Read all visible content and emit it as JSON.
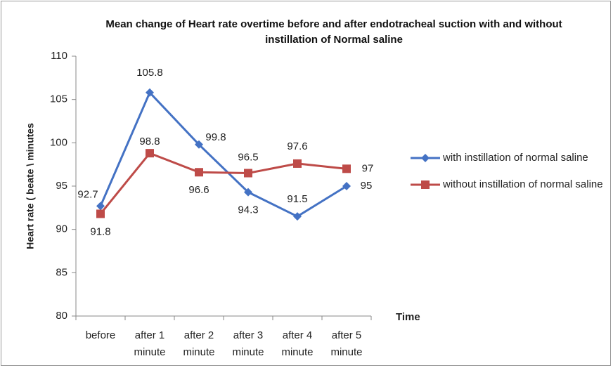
{
  "chart_data": {
    "type": "line",
    "title": "Mean change of Heart rate overtime before and after endotracheal  suction with and without instillation of Normal saline",
    "x_label": "Time",
    "y_label": "Heart rate ( beate \\ minutes",
    "categories": [
      "before",
      "after 1 minute",
      "after 2 minute",
      "after 3 minute",
      "after 4 minute",
      "after 5 minute"
    ],
    "series": [
      {
        "name": "with instillation of normal saline",
        "color": "#4472c4",
        "marker": "diamond",
        "values": [
          92.7,
          105.8,
          99.8,
          94.3,
          91.5,
          95
        ]
      },
      {
        "name": "without instillation of normal saline",
        "color": "#be4b48",
        "marker": "square",
        "values": [
          91.8,
          98.8,
          96.6,
          96.5,
          97.6,
          97
        ]
      }
    ],
    "ylim": [
      80,
      110
    ],
    "yticks": [
      80,
      85,
      90,
      95,
      100,
      105,
      110
    ],
    "grid": false,
    "legend": "right"
  }
}
